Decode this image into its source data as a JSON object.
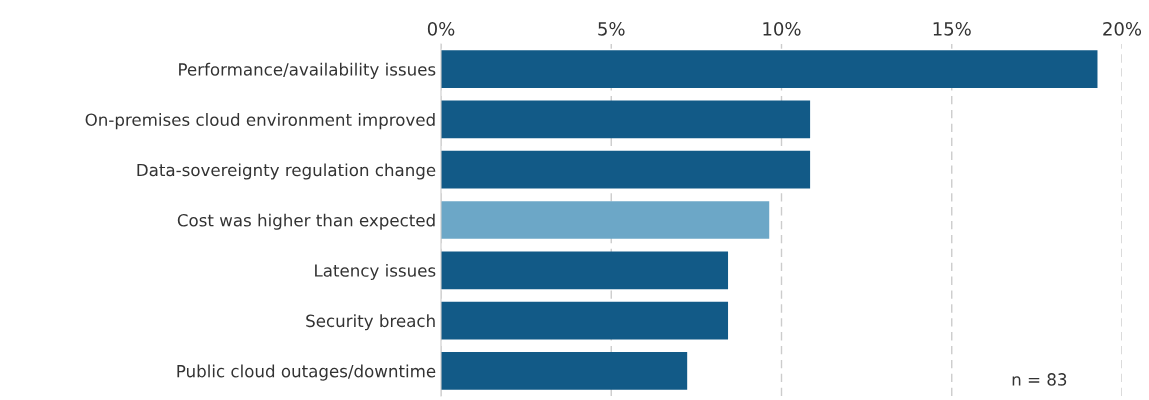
{
  "chart_data": {
    "type": "bar",
    "orientation": "horizontal",
    "categories": [
      "Performance/availability issues",
      "On-premises cloud environment improved",
      "Data-sovereignty regulation change",
      "Cost was higher than expected",
      "Latency issues",
      "Security breach",
      "Public cloud outages/downtime"
    ],
    "values": [
      19.28,
      10.84,
      10.84,
      9.64,
      8.43,
      8.43,
      7.23
    ],
    "colors": [
      "#125a87",
      "#125a87",
      "#125a87",
      "#6ca7c7",
      "#125a87",
      "#125a87",
      "#125a87"
    ],
    "xlim": [
      0,
      20
    ],
    "xticks": [
      {
        "value": 0,
        "label": "0%"
      },
      {
        "value": 5,
        "label": "5%"
      },
      {
        "value": 10,
        "label": "10%"
      },
      {
        "value": 15,
        "label": "15%"
      },
      {
        "value": 20,
        "label": "20%"
      }
    ],
    "grid": "x",
    "annotations": [
      "n = 83"
    ]
  }
}
